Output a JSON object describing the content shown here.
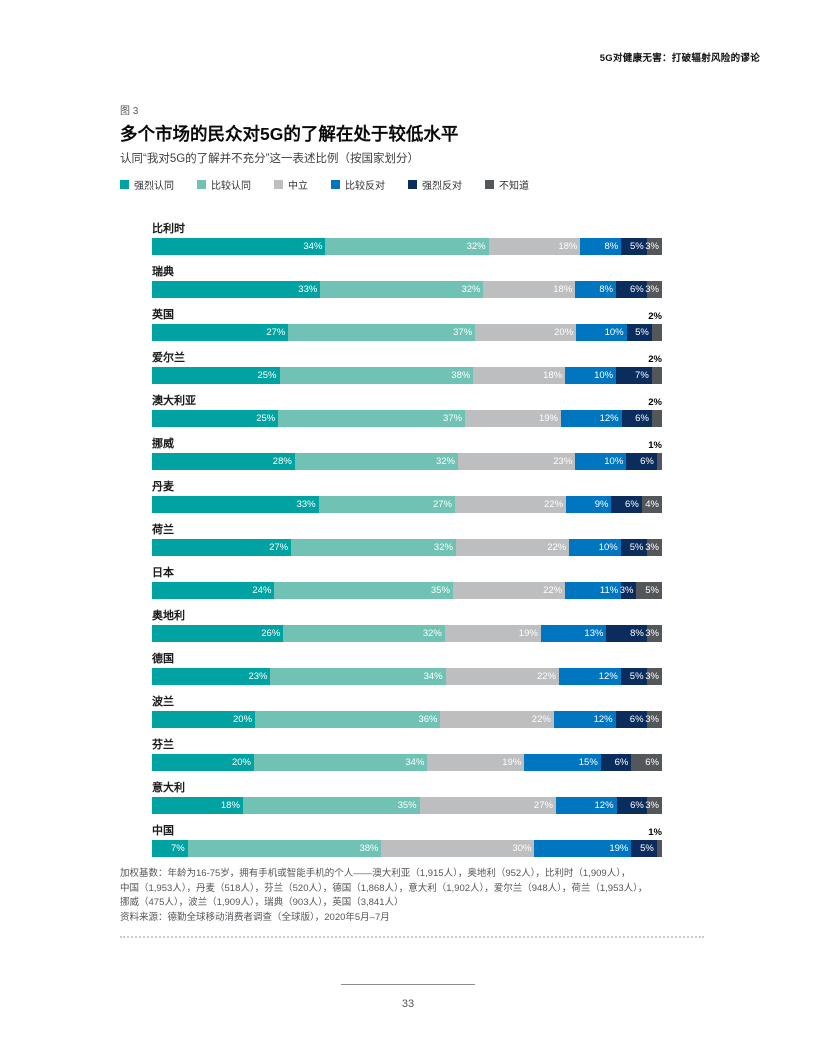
{
  "page": {
    "header": "5G对健康无害：打破辐射风险的谬论",
    "figure_label": "图 3",
    "title": "多个市场的民众对5G的了解在处于较低水平",
    "subtitle": "认同“我对5G的了解并不充分”这一表述比例（按国家划分）",
    "page_number": "33"
  },
  "legend": [
    {
      "label": "强烈认同",
      "color": "#00A3A1"
    },
    {
      "label": "比较认同",
      "color": "#6FC2B4"
    },
    {
      "label": "中立",
      "color": "#BDBEC0"
    },
    {
      "label": "比较反对",
      "color": "#0076C0"
    },
    {
      "label": "强烈反对",
      "color": "#0B2D5D"
    },
    {
      "label": "不知道",
      "color": "#53565A"
    }
  ],
  "chart_data": {
    "type": "bar",
    "stacked": true,
    "orientation": "horizontal",
    "unit": "%",
    "title": "多个市场的民众对5G的了解在处于较低水平",
    "subtitle": "认同“我对5G的了解并不充分”这一表述比例（按国家划分）",
    "series_names": [
      "强烈认同",
      "比较认同",
      "中立",
      "比较反对",
      "强烈反对",
      "不知道"
    ],
    "xlim": [
      0,
      100
    ],
    "legend_position": "top",
    "grid": false,
    "rows": [
      {
        "country": "比利时",
        "values": [
          34,
          32,
          18,
          8,
          5,
          3
        ],
        "above_label": null
      },
      {
        "country": "瑞典",
        "values": [
          33,
          32,
          18,
          8,
          6,
          3
        ],
        "above_label": null
      },
      {
        "country": "英国",
        "values": [
          27,
          37,
          20,
          10,
          5,
          2
        ],
        "above_label": "2%"
      },
      {
        "country": "爱尔兰",
        "values": [
          25,
          38,
          18,
          10,
          7,
          2
        ],
        "above_label": "2%"
      },
      {
        "country": "澳大利亚",
        "values": [
          25,
          37,
          19,
          12,
          6,
          2
        ],
        "above_label": "2%"
      },
      {
        "country": "挪威",
        "values": [
          28,
          32,
          23,
          10,
          6,
          1
        ],
        "above_label": "1%"
      },
      {
        "country": "丹麦",
        "values": [
          33,
          27,
          22,
          9,
          6,
          4
        ],
        "above_label": null
      },
      {
        "country": "荷兰",
        "values": [
          27,
          32,
          22,
          10,
          5,
          3
        ],
        "above_label": null
      },
      {
        "country": "日本",
        "values": [
          24,
          35,
          22,
          11,
          3,
          5
        ],
        "above_label": null
      },
      {
        "country": "奥地利",
        "values": [
          26,
          32,
          19,
          13,
          8,
          3
        ],
        "above_label": null
      },
      {
        "country": "德国",
        "values": [
          23,
          34,
          22,
          12,
          5,
          3
        ],
        "above_label": null
      },
      {
        "country": "波兰",
        "values": [
          20,
          36,
          22,
          12,
          6,
          3
        ],
        "above_label": null
      },
      {
        "country": "芬兰",
        "values": [
          20,
          34,
          19,
          15,
          6,
          6
        ],
        "above_label": null
      },
      {
        "country": "意大利",
        "values": [
          18,
          35,
          27,
          12,
          6,
          3
        ],
        "above_label": null
      },
      {
        "country": "中国",
        "values": [
          7,
          38,
          30,
          19,
          5,
          1
        ],
        "above_label": "1%"
      }
    ]
  },
  "footnote": {
    "lines": [
      "加权基数：年龄为16-75岁，拥有手机或智能手机的个人——澳大利亚（1,915人），奥地利（952人），比利时（1,909人），",
      "中国（1,953人），丹麦（518人），芬兰（520人），德国（1,868人），意大利（1,902人），爱尔兰（948人），荷兰（1,953人），",
      "挪威（475人），波兰（1,909人），瑞典（903人），英国（3,841人）",
      "资料来源：德勤全球移动消费者调查（全球版），2020年5月–7月"
    ]
  }
}
